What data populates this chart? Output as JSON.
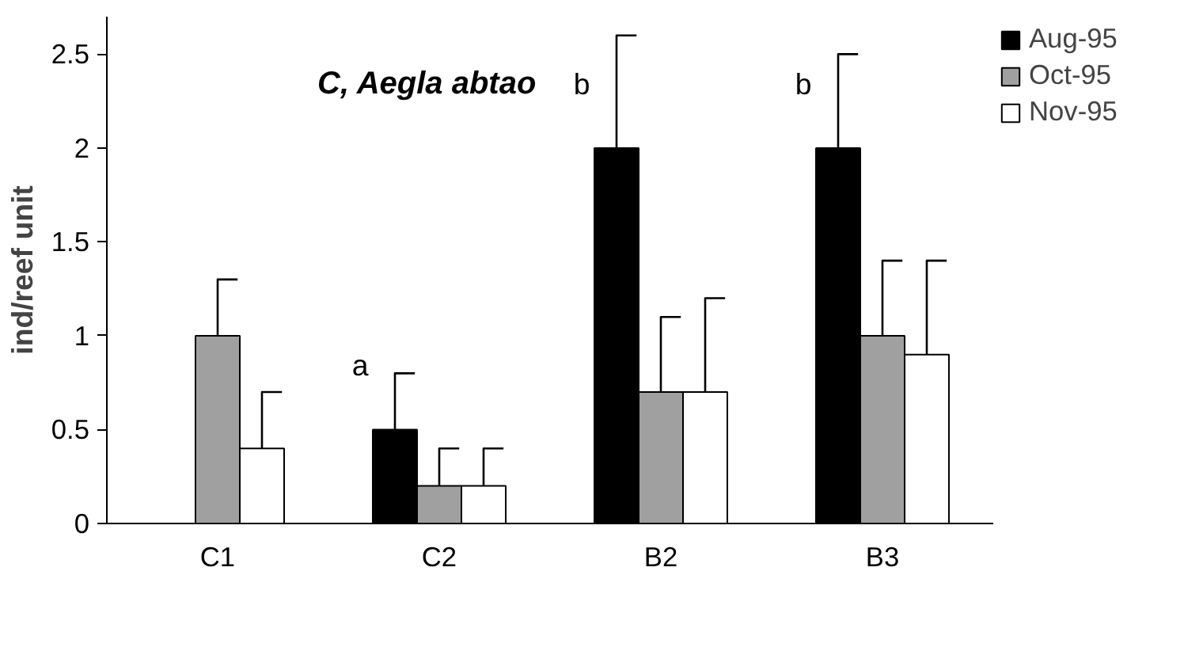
{
  "chart_data": {
    "type": "bar",
    "title": "C, Aegla abtao",
    "ylabel": "ind/reef unit",
    "categories": [
      "C1",
      "C2",
      "B2",
      "B3"
    ],
    "series": [
      {
        "name": "Aug-95",
        "color": "#000000",
        "values": [
          0,
          0.5,
          2,
          2
        ],
        "errors": [
          null,
          [
            0.5,
            0.8
          ],
          [
            2,
            2.6
          ],
          [
            2,
            2.5
          ]
        ]
      },
      {
        "name": "Oct-95",
        "color": "#a0a0a0",
        "values": [
          1,
          0.2,
          0.7,
          1
        ],
        "errors": [
          [
            1,
            1.3
          ],
          [
            0.2,
            0.4
          ],
          [
            0.7,
            1.1
          ],
          [
            1,
            1.4
          ]
        ]
      },
      {
        "name": "Nov-95",
        "color": "#ffffff",
        "values": [
          0.4,
          0.2,
          0.7,
          0.9
        ],
        "errors": [
          [
            0.4,
            0.7
          ],
          [
            0.2,
            0.4
          ],
          [
            0.7,
            1.2
          ],
          [
            0.9,
            1.4
          ]
        ]
      }
    ],
    "annotations": [
      "a",
      "b",
      "b"
    ],
    "ylim": [
      0,
      2.7
    ],
    "yticks": [
      0,
      0.5,
      1,
      1.5,
      2,
      2.5
    ],
    "grid": false,
    "legend": "top right"
  }
}
